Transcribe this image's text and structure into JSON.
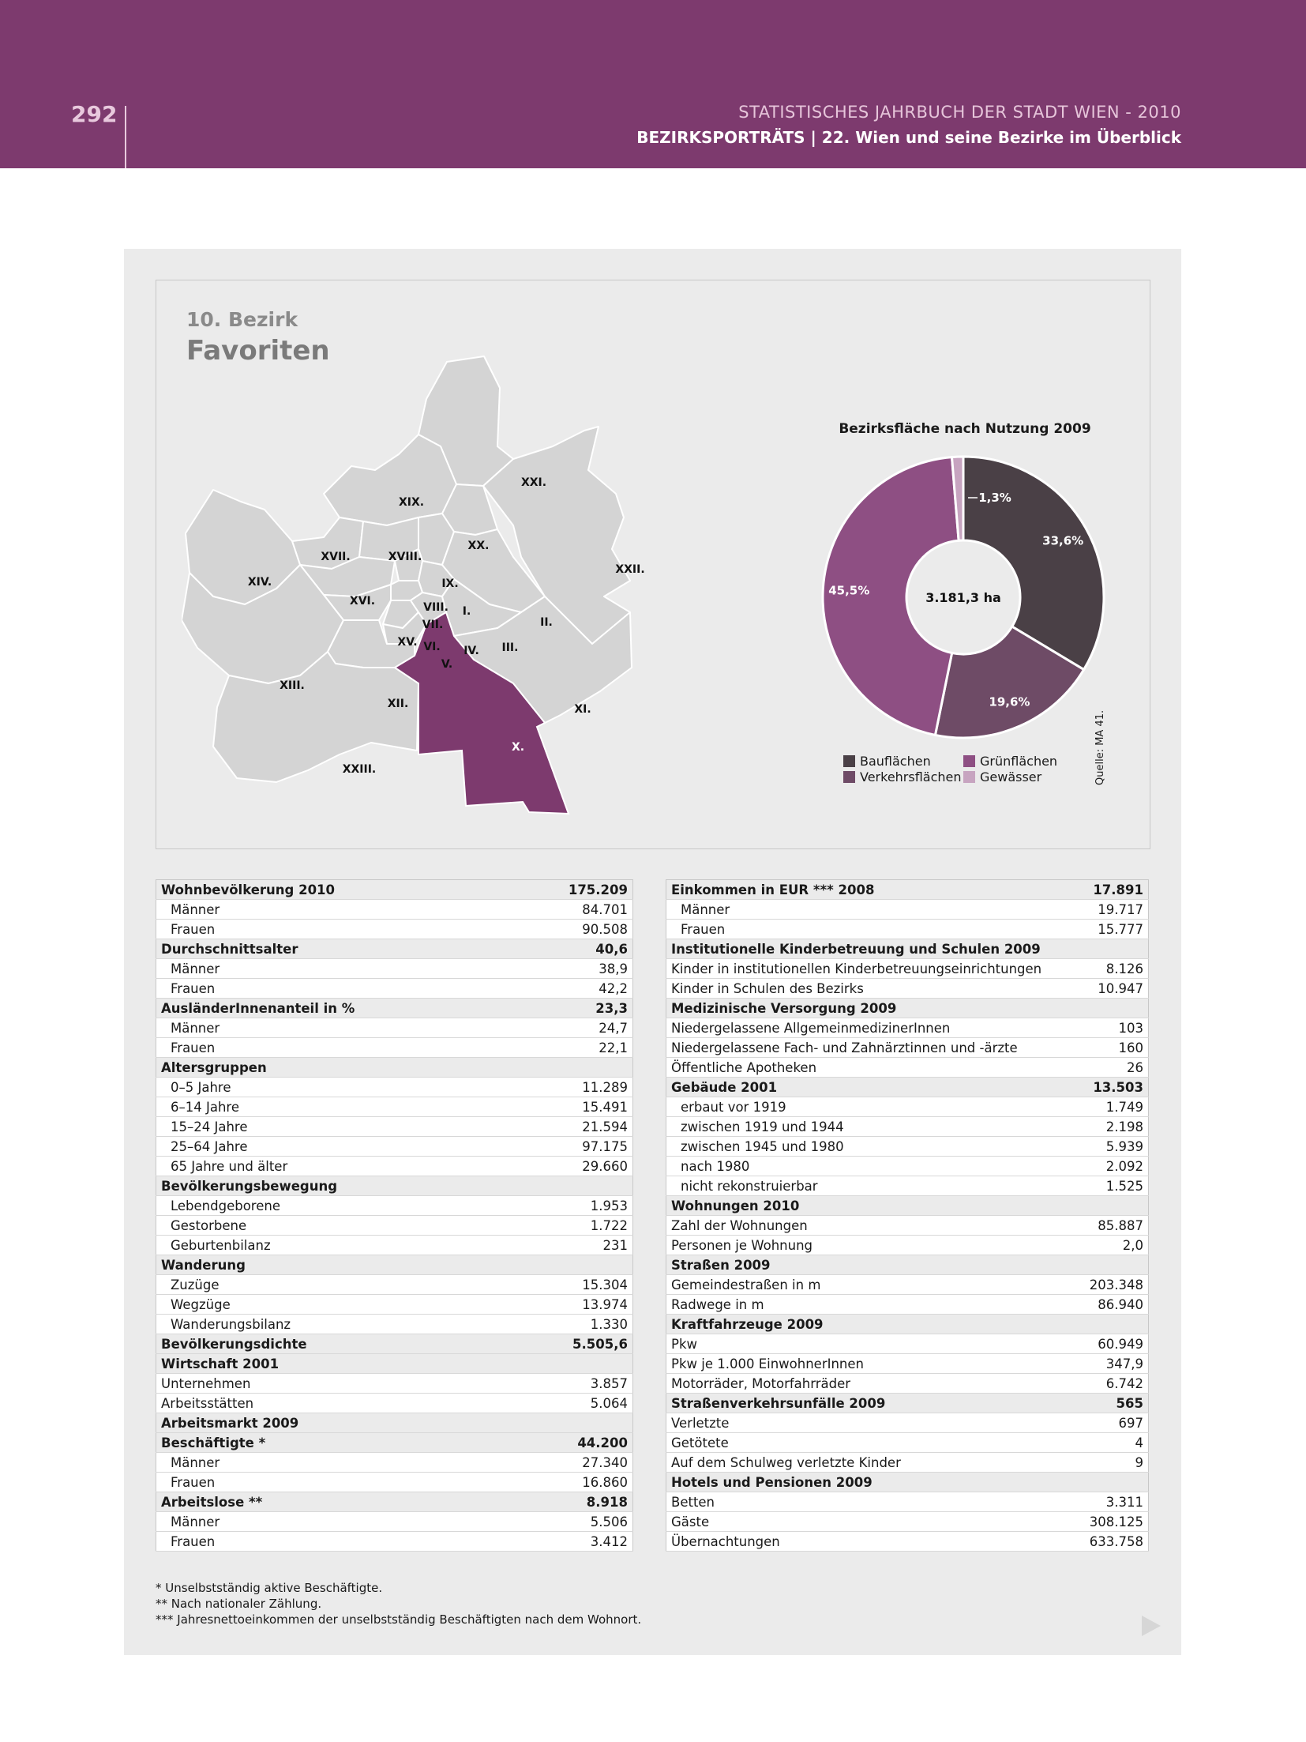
{
  "header": {
    "page_number": "292",
    "line1": "STATISTISCHES JAHRBUCH DER STADT WIEN - 2010",
    "line2": "BEZIRKSPORTRÄTS | 22. Wien und seine Bezirke im Überblick"
  },
  "district": {
    "number": "10. Bezirk",
    "name": "Favoriten"
  },
  "map": {
    "labels": [
      "XXI.",
      "XIX.",
      "XX.",
      "XVII.",
      "XVIII.",
      "XXII.",
      "XIV.",
      "IX.",
      "XVI.",
      "VIII.",
      "I.",
      "VII.",
      "II.",
      "XV.",
      "VI.",
      "IV.",
      "III.",
      "V.",
      "XIII.",
      "XII.",
      "XI.",
      "X.",
      "XXIII."
    ],
    "highlight": "X.",
    "colors": {
      "base": "#d4d4d4",
      "border": "#ffffff",
      "highlight": "#7d3a6e"
    }
  },
  "chart_data": {
    "type": "pie",
    "title": "Bezirksfläche nach Nutzung 2009",
    "center_label": "3.181,3 ha",
    "slices": [
      {
        "name": "Bauflächen",
        "value": 33.6,
        "label": "33,6%",
        "color": "#4a4046"
      },
      {
        "name": "Verkehrsflächen",
        "value": 19.6,
        "label": "19,6%",
        "color": "#6e4b66"
      },
      {
        "name": "Grünflächen",
        "value": 45.5,
        "label": "45,5%",
        "color": "#8e4f83"
      },
      {
        "name": "Gewässer",
        "value": 1.3,
        "label": "1,3%",
        "color": "#c7a4c0"
      }
    ],
    "legend": [
      "Bauflächen",
      "Verkehrsflächen",
      "Grünflächen",
      "Gewässer"
    ],
    "source": "Quelle: MA 41."
  },
  "table_left": [
    {
      "label": "Wohnbevölkerung 2010",
      "value": "175.209",
      "style": "b"
    },
    {
      "label": "Männer",
      "value": "84.701",
      "style": "s"
    },
    {
      "label": "Frauen",
      "value": "90.508",
      "style": "s"
    },
    {
      "label": "Durchschnittsalter",
      "value": "40,6",
      "style": "b"
    },
    {
      "label": "Männer",
      "value": "38,9",
      "style": "s"
    },
    {
      "label": "Frauen",
      "value": "42,2",
      "style": "s"
    },
    {
      "label": "AusländerInnenanteil in %",
      "value": "23,3",
      "style": "b"
    },
    {
      "label": "Männer",
      "value": "24,7",
      "style": "s"
    },
    {
      "label": "Frauen",
      "value": "22,1",
      "style": "s"
    },
    {
      "label": "Altersgruppen",
      "value": "",
      "style": "b"
    },
    {
      "label": "0–5 Jahre",
      "value": "11.289",
      "style": "s"
    },
    {
      "label": "6–14 Jahre",
      "value": "15.491",
      "style": "s"
    },
    {
      "label": "15–24 Jahre",
      "value": "21.594",
      "style": "s"
    },
    {
      "label": "25–64 Jahre",
      "value": "97.175",
      "style": "s"
    },
    {
      "label": "65 Jahre und älter",
      "value": "29.660",
      "style": "s"
    },
    {
      "label": "Bevölkerungsbewegung",
      "value": "",
      "style": "b"
    },
    {
      "label": "Lebendgeborene",
      "value": "1.953",
      "style": "s"
    },
    {
      "label": "Gestorbene",
      "value": "1.722",
      "style": "s"
    },
    {
      "label": "Geburtenbilanz",
      "value": "231",
      "style": "s"
    },
    {
      "label": "Wanderung",
      "value": "",
      "style": "b"
    },
    {
      "label": "Zuzüge",
      "value": "15.304",
      "style": "s"
    },
    {
      "label": "Wegzüge",
      "value": "13.974",
      "style": "s"
    },
    {
      "label": "Wanderungsbilanz",
      "value": "1.330",
      "style": "s"
    },
    {
      "label": "Bevölkerungsdichte",
      "value": "5.505,6",
      "style": "b"
    },
    {
      "label": "Wirtschaft 2001",
      "value": "",
      "style": "b"
    },
    {
      "label": "Unternehmen",
      "value": "3.857",
      "style": "n"
    },
    {
      "label": "Arbeitsstätten",
      "value": "5.064",
      "style": "n"
    },
    {
      "label": "Arbeitsmarkt 2009",
      "value": "",
      "style": "b"
    },
    {
      "label": "Beschäftigte *",
      "value": "44.200",
      "style": "b"
    },
    {
      "label": "Männer",
      "value": "27.340",
      "style": "s"
    },
    {
      "label": "Frauen",
      "value": "16.860",
      "style": "s"
    },
    {
      "label": "Arbeitslose **",
      "value": "8.918",
      "style": "b"
    },
    {
      "label": "Männer",
      "value": "5.506",
      "style": "s"
    },
    {
      "label": "Frauen",
      "value": "3.412",
      "style": "s"
    }
  ],
  "table_right": [
    {
      "label": "Einkommen in EUR *** 2008",
      "value": "17.891",
      "style": "b"
    },
    {
      "label": "Männer",
      "value": "19.717",
      "style": "s"
    },
    {
      "label": "Frauen",
      "value": "15.777",
      "style": "s"
    },
    {
      "label": "Institutionelle Kinderbetreuung und Schulen 2009",
      "value": "",
      "style": "b"
    },
    {
      "label": "Kinder in institutionellen Kinderbetreuungseinrichtungen",
      "value": "8.126",
      "style": "n"
    },
    {
      "label": "Kinder in Schulen des Bezirks",
      "value": "10.947",
      "style": "n"
    },
    {
      "label": "Medizinische Versorgung 2009",
      "value": "",
      "style": "b"
    },
    {
      "label": "Niedergelassene AllgemeinmedizinerInnen",
      "value": "103",
      "style": "n"
    },
    {
      "label": "Niedergelassene Fach- und Zahnärztinnen und -ärzte",
      "value": "160",
      "style": "n"
    },
    {
      "label": "Öffentliche Apotheken",
      "value": "26",
      "style": "n"
    },
    {
      "label": "Gebäude 2001",
      "value": "13.503",
      "style": "b"
    },
    {
      "label": "erbaut vor 1919",
      "value": "1.749",
      "style": "s"
    },
    {
      "label": "zwischen 1919 und 1944",
      "value": "2.198",
      "style": "s"
    },
    {
      "label": "zwischen 1945 und 1980",
      "value": "5.939",
      "style": "s"
    },
    {
      "label": "nach 1980",
      "value": "2.092",
      "style": "s"
    },
    {
      "label": "nicht rekonstruierbar",
      "value": "1.525",
      "style": "s"
    },
    {
      "label": "Wohnungen 2010",
      "value": "",
      "style": "b"
    },
    {
      "label": "Zahl der Wohnungen",
      "value": "85.887",
      "style": "n"
    },
    {
      "label": "Personen je Wohnung",
      "value": "2,0",
      "style": "n"
    },
    {
      "label": "Straßen 2009",
      "value": "",
      "style": "b"
    },
    {
      "label": "Gemeindestraßen in m",
      "value": "203.348",
      "style": "n"
    },
    {
      "label": "Radwege in m",
      "value": "86.940",
      "style": "n"
    },
    {
      "label": "Kraftfahrzeuge 2009",
      "value": "",
      "style": "b"
    },
    {
      "label": "Pkw",
      "value": "60.949",
      "style": "n"
    },
    {
      "label": "Pkw je 1.000 EinwohnerInnen",
      "value": "347,9",
      "style": "n"
    },
    {
      "label": "Motorräder, Motorfahrräder",
      "value": "6.742",
      "style": "n"
    },
    {
      "label": "Straßenverkehrsunfälle 2009",
      "value": "565",
      "style": "b"
    },
    {
      "label": "Verletzte",
      "value": "697",
      "style": "n"
    },
    {
      "label": "Getötete",
      "value": "4",
      "style": "n"
    },
    {
      "label": "Auf dem Schulweg verletzte Kinder",
      "value": "9",
      "style": "n"
    },
    {
      "label": "Hotels und Pensionen 2009",
      "value": "",
      "style": "b"
    },
    {
      "label": "Betten",
      "value": "3.311",
      "style": "n"
    },
    {
      "label": "Gäste",
      "value": "308.125",
      "style": "n"
    },
    {
      "label": "Übernachtungen",
      "value": "633.758",
      "style": "n"
    }
  ],
  "footnotes": [
    "* Unselbstständig aktive Beschäftigte.",
    "** Nach nationaler Zählung.",
    "*** Jahresnettoeinkommen der unselbstständig Beschäftigten nach dem Wohnort."
  ]
}
